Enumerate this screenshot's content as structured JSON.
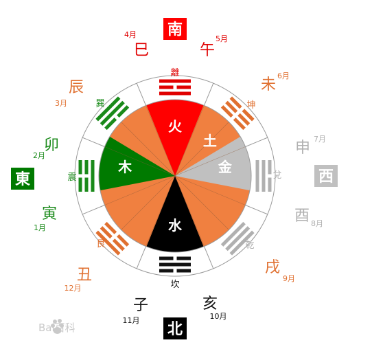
{
  "colors": {
    "fire": "#ff0000",
    "earth": "#f08040",
    "wood": "#007a00",
    "metal": "#c0c0c0",
    "water": "#000000",
    "ring_line": "#999999",
    "label_red": "#e00000",
    "label_orange": "#e07030",
    "label_green": "#1a8a1a",
    "label_gray": "#b0b0b0",
    "label_black": "#111111",
    "white": "#ffffff"
  },
  "center_elements": [
    {
      "key": "fire",
      "label": "火"
    },
    {
      "key": "earth",
      "label": "土"
    },
    {
      "key": "metal",
      "label": "金"
    },
    {
      "key": "wood",
      "label": "木"
    },
    {
      "key": "water",
      "label": "水"
    }
  ],
  "trigrams": [
    {
      "key": "li",
      "name": "離",
      "color": "label_red"
    },
    {
      "key": "kun",
      "name": "坤",
      "color": "label_orange"
    },
    {
      "key": "dui",
      "name": "兌",
      "color": "label_gray"
    },
    {
      "key": "qian",
      "name": "乾",
      "color": "label_gray"
    },
    {
      "key": "kan",
      "name": "坎",
      "color": "label_black"
    },
    {
      "key": "gen",
      "name": "艮",
      "color": "label_orange"
    },
    {
      "key": "zhen",
      "name": "震",
      "color": "label_green"
    },
    {
      "key": "xun",
      "name": "巽",
      "color": "label_green"
    }
  ],
  "directions": [
    {
      "key": "south",
      "label": "南",
      "color": "fire"
    },
    {
      "key": "west",
      "label": "西",
      "color": "metal"
    },
    {
      "key": "north",
      "label": "北",
      "color": "water"
    },
    {
      "key": "east",
      "label": "東",
      "color": "wood"
    }
  ],
  "branches": [
    {
      "key": "si",
      "label": "巳",
      "month": "4月",
      "color": "label_red"
    },
    {
      "key": "wu",
      "label": "午",
      "month": "5月",
      "color": "label_red"
    },
    {
      "key": "wei",
      "label": "未",
      "month": "6月",
      "color": "label_orange"
    },
    {
      "key": "shen",
      "label": "申",
      "month": "7月",
      "color": "label_gray"
    },
    {
      "key": "you",
      "label": "酉",
      "month": "8月",
      "color": "label_gray"
    },
    {
      "key": "xu",
      "label": "戌",
      "month": "9月",
      "color": "label_orange"
    },
    {
      "key": "hai",
      "label": "亥",
      "month": "10月",
      "color": "label_black"
    },
    {
      "key": "zi",
      "label": "子",
      "month": "11月",
      "color": "label_black"
    },
    {
      "key": "chou",
      "label": "丑",
      "month": "12月",
      "color": "label_orange"
    },
    {
      "key": "yin",
      "label": "寅",
      "month": "1月",
      "color": "label_green"
    },
    {
      "key": "mao",
      "label": "卯",
      "month": "2月",
      "color": "label_green"
    },
    {
      "key": "chen",
      "label": "辰",
      "month": "3月",
      "color": "label_orange"
    }
  ],
  "watermark": {
    "text": "Bai百科"
  }
}
